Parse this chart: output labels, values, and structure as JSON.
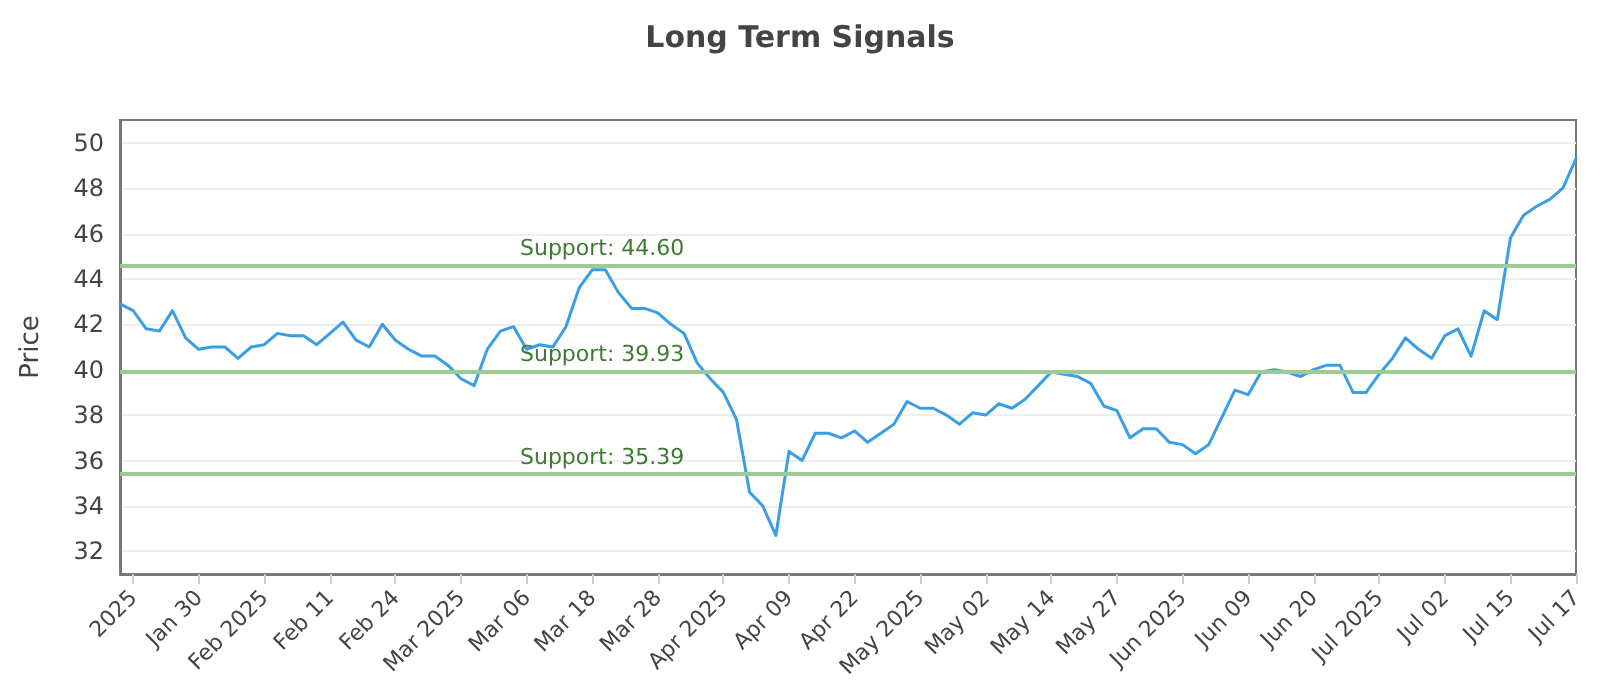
{
  "chart_data": {
    "type": "line",
    "title": "Long Term Signals",
    "ylabel": "Price",
    "categories": [
      null,
      "2025",
      null,
      null,
      null,
      null,
      "Jan 30",
      null,
      null,
      null,
      null,
      "Feb 2025",
      null,
      null,
      null,
      null,
      "Feb 11",
      null,
      null,
      null,
      null,
      "Feb 24",
      null,
      null,
      null,
      null,
      "Mar 2025",
      null,
      null,
      null,
      null,
      "Mar 06",
      null,
      null,
      null,
      null,
      "Mar 18",
      null,
      null,
      null,
      null,
      "Mar 28",
      null,
      null,
      null,
      null,
      "Apr 2025",
      null,
      null,
      null,
      null,
      "Apr 09",
      null,
      null,
      null,
      null,
      "Apr 22",
      null,
      null,
      null,
      null,
      "May 2025",
      null,
      null,
      null,
      null,
      "May 02",
      null,
      null,
      null,
      null,
      "May 14",
      null,
      null,
      null,
      null,
      "May 27",
      null,
      null,
      null,
      null,
      "Jun 2025",
      null,
      null,
      null,
      null,
      "Jun 09",
      null,
      null,
      null,
      null,
      "Jun 20",
      null,
      null,
      null,
      null,
      "Jul 2025",
      null,
      null,
      null,
      null,
      "Jul 02",
      null,
      null,
      null,
      null,
      "Jul 15",
      null,
      null,
      null,
      null,
      "Jul 17"
    ],
    "series": [
      {
        "color": "#3a9ee6",
        "values": [
          42.9,
          42.6,
          41.8,
          41.7,
          42.6,
          41.4,
          40.9,
          41.0,
          41.0,
          40.5,
          41.0,
          41.1,
          41.6,
          41.5,
          41.5,
          41.1,
          41.6,
          42.1,
          41.3,
          41.0,
          42.0,
          41.3,
          40.9,
          40.6,
          40.6,
          40.2,
          39.6,
          39.3,
          40.9,
          41.7,
          41.9,
          40.9,
          41.1,
          41.0,
          41.9,
          43.6,
          44.4,
          44.4,
          43.4,
          42.7,
          42.7,
          42.5,
          42.0,
          41.6,
          40.3,
          39.6,
          39.0,
          37.8,
          34.6,
          34.0,
          32.7,
          36.4,
          36.0,
          37.2,
          37.2,
          37.0,
          37.3,
          36.8,
          37.2,
          37.6,
          38.6,
          38.3,
          38.3,
          38.0,
          37.6,
          38.1,
          38.0,
          38.5,
          38.3,
          38.7,
          39.3,
          39.9,
          39.8,
          39.7,
          39.4,
          38.4,
          38.2,
          37.0,
          37.4,
          37.4,
          36.8,
          36.7,
          36.3,
          36.7,
          37.9,
          39.1,
          38.9,
          39.9,
          40.0,
          39.9,
          39.7,
          40.0,
          40.2,
          40.2,
          39.0,
          39.0,
          39.8,
          40.5,
          41.4,
          40.9,
          40.5,
          41.5,
          41.8,
          40.6,
          42.6,
          42.2,
          45.8,
          46.8,
          47.2,
          47.5,
          48.0,
          49.3
        ]
      }
    ],
    "ylim": [
      31,
      51
    ],
    "yticks": [
      32,
      34,
      36,
      38,
      40,
      42,
      44,
      46,
      48,
      50
    ],
    "grid": "y",
    "marker": "none",
    "line_style": "solid",
    "ref_lines": [
      {
        "axis": "y",
        "value": 44.6,
        "label": "Support: 44.60",
        "color": "#9ccc94"
      },
      {
        "axis": "y",
        "value": 39.93,
        "label": "Support: 39.93",
        "color": "#9ccc94"
      },
      {
        "axis": "y",
        "value": 35.39,
        "label": "Support: 35.39",
        "color": "#9ccc94"
      }
    ]
  }
}
